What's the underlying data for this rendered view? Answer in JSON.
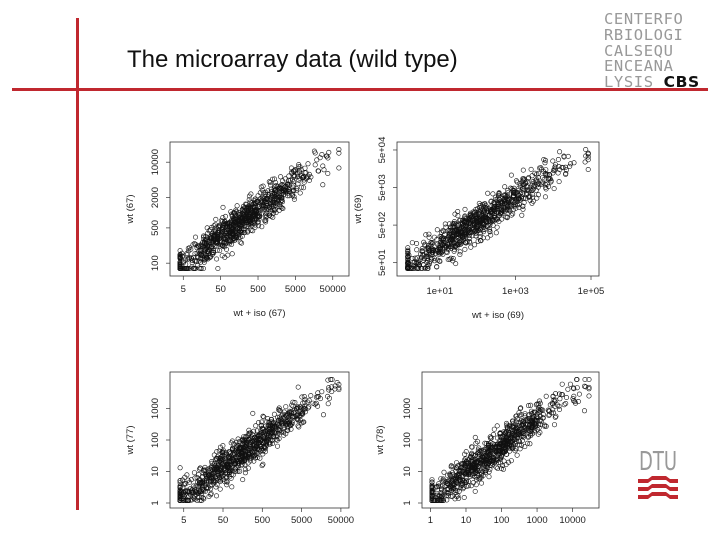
{
  "slide": {
    "title": "The microarray data (wild type)",
    "logo_lines": [
      "CENTERFO",
      "RBIOLOGI",
      "CALSEQU",
      "ENCEANA",
      "LYSIS "
    ],
    "logo_cbs": "CBS",
    "dtu": "DTU",
    "accent_color": "#c0282f"
  },
  "chart_data": [
    {
      "type": "scatter",
      "xlabel": "wt + iso (67)",
      "ylabel": "wt (67)",
      "log_x": true,
      "log_y": true,
      "xlim": [
        3,
        100000
      ],
      "ylim": [
        70,
        20000
      ],
      "xticks": [
        "5",
        "50",
        "500",
        "5000",
        "50000"
      ],
      "yticks": [
        "100",
        "500",
        "2000",
        "10000"
      ],
      "x_tick_values": [
        5,
        50,
        500,
        5000,
        50000
      ],
      "y_tick_values": [
        100,
        500,
        2000,
        10000
      ]
    },
    {
      "type": "scatter",
      "xlabel": "wt + iso (69)",
      "ylabel": "wt (69)",
      "log_x": true,
      "log_y": true,
      "xlim": [
        1,
        120000
      ],
      "ylim": [
        30,
        60000
      ],
      "xticks": [
        "1e+01",
        "1e+03",
        "1e+05"
      ],
      "yticks": [
        "5e+01",
        "5e+02",
        "5e+03",
        "5e+04"
      ],
      "x_tick_values": [
        10,
        1000,
        100000
      ],
      "y_tick_values": [
        50,
        500,
        5000,
        50000
      ]
    },
    {
      "type": "scatter",
      "xlabel": "",
      "ylabel": "wt (77)",
      "log_x": true,
      "log_y": true,
      "xlim": [
        3,
        60000
      ],
      "ylim": [
        1,
        10000
      ],
      "xticks": [
        "5",
        "50",
        "500",
        "5000",
        "50000"
      ],
      "yticks": [
        "1",
        "10",
        "100",
        "1000"
      ],
      "x_tick_values": [
        5,
        50,
        500,
        5000,
        50000
      ],
      "y_tick_values": [
        1,
        10,
        100,
        1000
      ]
    },
    {
      "type": "scatter",
      "xlabel": "",
      "ylabel": "wt (78)",
      "log_x": true,
      "log_y": true,
      "xlim": [
        0.8,
        40000
      ],
      "ylim": [
        1,
        10000
      ],
      "xticks": [
        "1",
        "10",
        "100",
        "1000",
        "10000"
      ],
      "yticks": [
        "1",
        "10",
        "100",
        "1000"
      ],
      "x_tick_values": [
        1,
        10,
        100,
        1000,
        10000
      ],
      "y_tick_values": [
        1,
        10,
        100,
        1000
      ]
    }
  ]
}
